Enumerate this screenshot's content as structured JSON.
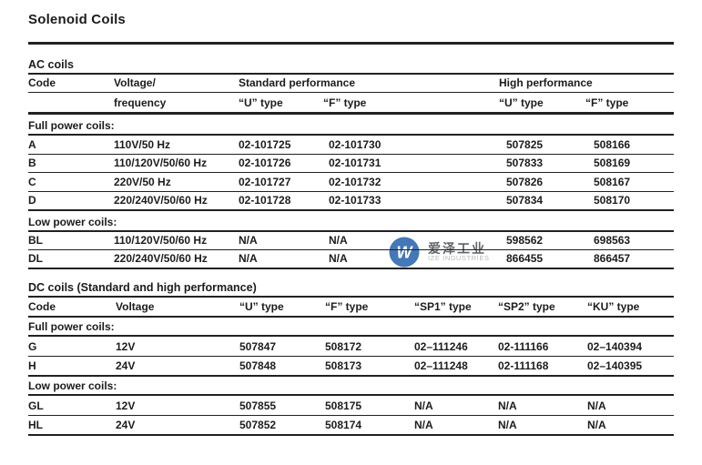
{
  "page_title": "Solenoid Coils",
  "watermark": {
    "logo_letter": "W",
    "logo_color": "#4478b7",
    "cn_text": "爱泽工业",
    "cn_color": "#5f6468",
    "en_text": "IZE INDUSTRIES",
    "en_color": "#b5babe"
  },
  "tables": [
    {
      "id": "ac",
      "section_title": "AC coils",
      "header_rows": [
        {
          "cells": [
            {
              "t": "Code"
            },
            {
              "t": "Voltage/"
            },
            {
              "t": "Standard performance",
              "span": 2
            },
            {
              "t": "High performance",
              "span": 2
            }
          ]
        },
        {
          "cells": [
            {
              "t": ""
            },
            {
              "t": "frequency"
            },
            {
              "t": "“U” type"
            },
            {
              "t": "“F” type"
            },
            {
              "t": "“U” type"
            },
            {
              "t": "“F” type"
            }
          ]
        }
      ],
      "groups": [
        {
          "label": "Full power coils:",
          "rows": [
            [
              "A",
              "110V/50 Hz",
              "02-101725",
              "02-101730",
              "507825",
              "508166"
            ],
            [
              "B",
              "110/120V/50/60 Hz",
              "02-101726",
              "02-101731",
              "507833",
              "508169"
            ],
            [
              "C",
              "220V/50 Hz",
              "02-101727",
              "02-101732",
              "507826",
              "508167"
            ],
            [
              "D",
              "220/240V/50/60 Hz",
              "02-101728",
              "02-101733",
              "507834",
              "508170"
            ]
          ]
        },
        {
          "label": "Low power coils:",
          "rows": [
            [
              "BL",
              "110/120V/50/60 Hz",
              "N/A",
              "N/A",
              "598562",
              "698563"
            ],
            [
              "DL",
              "220/240V/50/60 Hz",
              "N/A",
              "N/A",
              "866455",
              "866457"
            ]
          ]
        }
      ]
    },
    {
      "id": "dc",
      "section_title": "DC coils (Standard and high performance)",
      "header_rows": [
        {
          "cells": [
            {
              "t": "Code"
            },
            {
              "t": "Voltage"
            },
            {
              "t": "“U” type"
            },
            {
              "t": "“F” type"
            },
            {
              "t": "“SP1” type"
            },
            {
              "t": "“SP2” type"
            },
            {
              "t": "“KU” type"
            }
          ]
        }
      ],
      "groups": [
        {
          "label": "Full power coils:",
          "rows": [
            [
              "G",
              "12V",
              "507847",
              "508172",
              "02–111246",
              "02-111166",
              "02–140394"
            ],
            [
              "H",
              "24V",
              "507848",
              "508173",
              "02–111248",
              "02-111168",
              "02–140395"
            ]
          ]
        },
        {
          "label": "Low power coils:",
          "rows": [
            [
              "GL",
              "12V",
              "507855",
              "508175",
              "N/A",
              "N/A",
              "N/A"
            ],
            [
              "HL",
              "24V",
              "507852",
              "508174",
              "N/A",
              "N/A",
              "N/A"
            ]
          ]
        }
      ]
    }
  ]
}
